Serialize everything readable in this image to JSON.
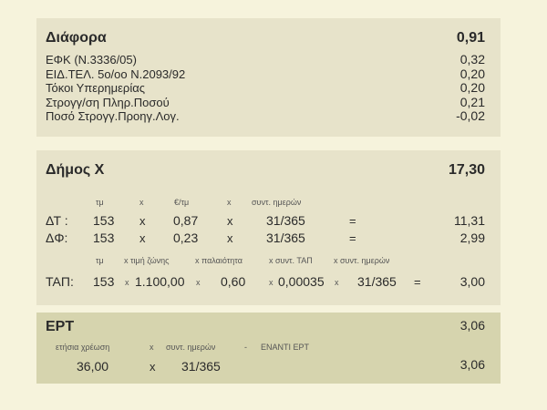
{
  "diafora": {
    "title": "Διάφορα",
    "total": "0,91",
    "items": [
      {
        "label": "ΕΦΚ (Ν.3336/05)",
        "value": "0,32"
      },
      {
        "label": "ΕΙΔ.ΤΕΛ. 5ο/οο Ν.2093/92",
        "value": "0,20"
      },
      {
        "label": "Τόκοι Υπερημερίας",
        "value": "0,20"
      },
      {
        "label": "Στρογγ/ση Πληρ.Ποσού",
        "value": "0,21"
      },
      {
        "label": "Ποσό Στρογγ.Προηγ.Λογ.",
        "value": "-0,02"
      }
    ]
  },
  "dimos": {
    "title": "Δήμος Χ",
    "total": "17,30",
    "header1": {
      "tm": "τμ",
      "x1": "x",
      "rate": "€/τμ",
      "x2": "x",
      "days": "συντ. ημερών"
    },
    "rows": [
      {
        "label": "ΔΤ :",
        "tm": "153",
        "x1": "x",
        "rate": "0,87",
        "x2": "x",
        "days": "31/365",
        "eq": "=",
        "value": "11,31"
      },
      {
        "label": "ΔΦ:",
        "tm": "153",
        "x1": "x",
        "rate": "0,23",
        "x2": "x",
        "days": "31/365",
        "eq": "=",
        "value": "2,99"
      }
    ],
    "header2": {
      "tm": "τμ",
      "zone": "x τιμή ζώνης",
      "age": "x παλαιότητα",
      "coef": "x συντ. ΤΑΠ",
      "days": "x συντ. ημερών"
    },
    "tap": {
      "label": "ΤΑΠ:",
      "tm": "153",
      "x1": "x",
      "zone": "1.100,00",
      "x2": "x",
      "age": "0,60",
      "x3": "x",
      "coef": "0,00035",
      "x4": "x",
      "days": "31/365",
      "eq": "=",
      "value": "3,00"
    }
  },
  "ert": {
    "title": "ΕΡΤ",
    "total": "3,06",
    "header": {
      "annual": "ετήσια χρέωση",
      "x": "x",
      "days": "συντ. ημερών",
      "dash": "-",
      "against": "ΕΝΑΝΤΙ ΕΡΤ"
    },
    "row": {
      "annual": "36,00",
      "x": "x",
      "days": "31/365",
      "value": "3,06"
    }
  }
}
